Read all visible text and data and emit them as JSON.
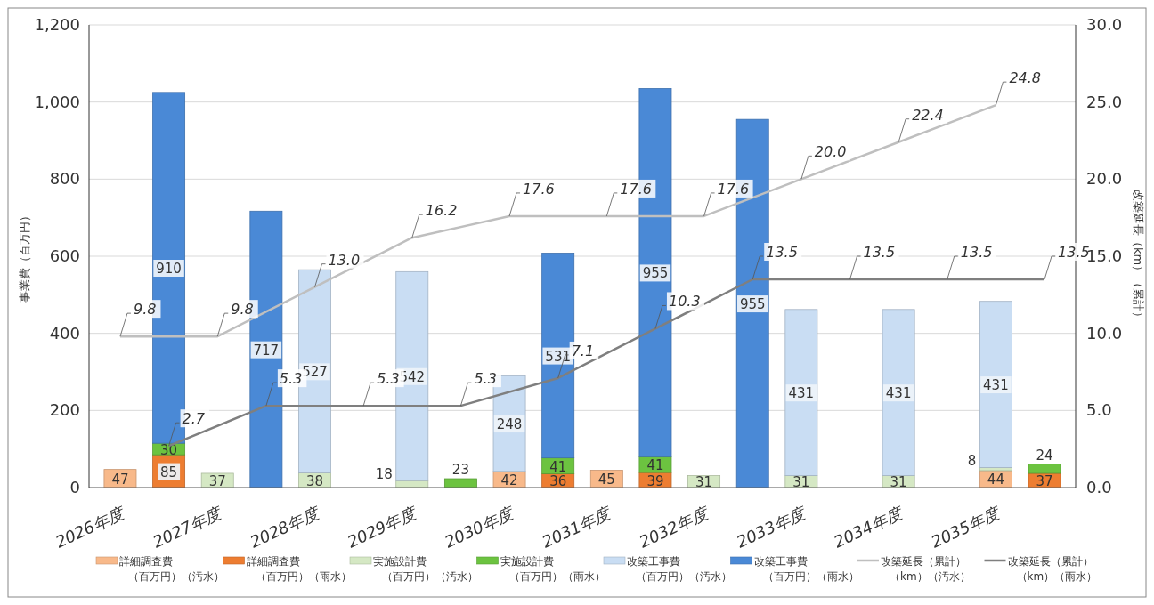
{
  "chart_data": {
    "type": "bar",
    "stacked": true,
    "ylabel": "事業費（百万円）",
    "y2label": "改築延長（km）（累計）",
    "categories": [
      "2026年度",
      null,
      "2027年度",
      null,
      "2028年度",
      null,
      "2029年度",
      null,
      "2030年度",
      null,
      "2031年度",
      null,
      "2032年度",
      null,
      "2033年度",
      null,
      "2034年度",
      null,
      "2035年度",
      null
    ],
    "ylim": [
      0,
      1200
    ],
    "yticks": [
      0,
      200,
      400,
      600,
      800,
      {
        "value": 1000,
        "label": "1,000"
      },
      {
        "value": 1200,
        "label": "1,200"
      }
    ],
    "y2lim": [
      0,
      30
    ],
    "y2ticks": [
      {
        "value": 0,
        "label": "0.0"
      },
      {
        "value": 5,
        "label": "5.0"
      },
      {
        "value": 10,
        "label": "10.0"
      },
      {
        "value": 15,
        "label": "15.0"
      },
      {
        "value": 20,
        "label": "20.0"
      },
      {
        "value": 25,
        "label": "25.0"
      },
      {
        "value": 30,
        "label": "30.0"
      }
    ],
    "grid": "y",
    "legend": "bottom",
    "data_labels": true,
    "series": [
      {
        "name": "詳細調査費（百万円）（汚水）",
        "color": "#f8b98a",
        "values": [
          47,
          null,
          null,
          null,
          null,
          null,
          null,
          null,
          42,
          null,
          45,
          null,
          null,
          null,
          null,
          null,
          null,
          null,
          44,
          null
        ]
      },
      {
        "name": "詳細調査費（百万円）（雨水）",
        "color": "#ed7d31",
        "values": [
          null,
          85,
          null,
          null,
          null,
          null,
          null,
          null,
          null,
          36,
          null,
          39,
          null,
          null,
          null,
          null,
          null,
          null,
          null,
          37
        ]
      },
      {
        "name": "実施設計費（百万円）（汚水）",
        "color": "#d5e8c4",
        "values": [
          null,
          null,
          37,
          null,
          38,
          null,
          18,
          null,
          null,
          null,
          null,
          null,
          31,
          null,
          31,
          null,
          31,
          null,
          8,
          null
        ]
      },
      {
        "name": "実施設計費（百万円）（雨水）",
        "color": "#6cc340",
        "values": [
          null,
          30,
          null,
          null,
          null,
          null,
          null,
          23,
          null,
          41,
          null,
          41,
          null,
          null,
          null,
          null,
          null,
          null,
          null,
          24
        ]
      },
      {
        "name": "改築工事費（百万円）（汚水）",
        "color": "#c9ddf3",
        "values": [
          null,
          null,
          null,
          null,
          527,
          null,
          542,
          null,
          248,
          null,
          null,
          null,
          null,
          null,
          431,
          null,
          431,
          null,
          431,
          null
        ]
      },
      {
        "name": "改築工事費（百万円）（雨水）",
        "color": "#4a89d6",
        "values": [
          null,
          910,
          null,
          717,
          null,
          null,
          null,
          null,
          null,
          531,
          null,
          955,
          null,
          955,
          null,
          null,
          null,
          null,
          null,
          null
        ]
      },
      {
        "name": "改築延長（累計）（km）（汚水）",
        "type": "line",
        "axis": "y2",
        "color": "#bfbfbf",
        "marker": "none",
        "value_labels": [
          "9.8",
          null,
          "9.8",
          null,
          "13.0",
          null,
          "16.2",
          null,
          "17.6",
          null,
          "17.6",
          null,
          "17.6",
          null,
          "20.0",
          null,
          "22.4",
          null,
          "24.8",
          null
        ],
        "values": [
          9.8,
          null,
          9.8,
          null,
          13.0,
          null,
          16.2,
          null,
          17.6,
          null,
          17.6,
          null,
          17.6,
          null,
          20.0,
          null,
          22.4,
          null,
          24.8,
          null
        ]
      },
      {
        "name": "改築延長（累計）（km）（雨水）",
        "type": "line",
        "axis": "y2",
        "color": "#7f7f7f",
        "marker": "none",
        "value_labels": [
          null,
          "2.7",
          null,
          "5.3",
          null,
          "5.3",
          null,
          "5.3",
          null,
          "7.1",
          null,
          "10.3",
          null,
          "13.5",
          null,
          "13.5",
          null,
          "13.5",
          null,
          "13.5"
        ],
        "values": [
          null,
          2.7,
          null,
          5.3,
          null,
          5.3,
          null,
          5.3,
          null,
          7.1,
          null,
          10.3,
          null,
          13.5,
          null,
          13.5,
          null,
          13.5,
          null,
          13.5
        ]
      }
    ]
  }
}
